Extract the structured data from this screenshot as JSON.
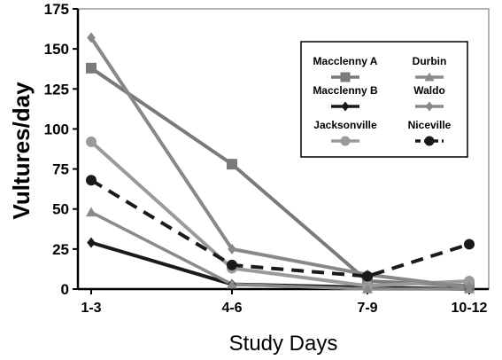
{
  "chart_data": {
    "type": "line",
    "title": "",
    "xlabel": "Study Days",
    "ylabel": "Vultures/day",
    "categories": [
      "1-3",
      "4-6",
      "7-9",
      "10-12"
    ],
    "ylim": [
      0,
      175
    ],
    "yticks": [
      "0",
      "25",
      "50",
      "75",
      "100",
      "125",
      "150",
      "175"
    ],
    "grid": false,
    "legend_position": "top-right",
    "series": [
      {
        "name": "Macclenny A",
        "values": [
          138,
          78,
          5,
          2
        ],
        "color": "#7a7a7a",
        "width": 4,
        "dash": "",
        "marker": "square"
      },
      {
        "name": "Macclenny B",
        "values": [
          29,
          3,
          1,
          0
        ],
        "color": "#1a1a1a",
        "width": 4,
        "dash": "",
        "marker": "diamond"
      },
      {
        "name": "Jacksonville",
        "values": [
          92,
          13,
          2,
          5
        ],
        "color": "#9a9a9a",
        "width": 4,
        "dash": "",
        "marker": "circle"
      },
      {
        "name": "Durbin",
        "values": [
          48,
          3,
          0,
          0
        ],
        "color": "#8a8a8a",
        "width": 3.5,
        "dash": "",
        "marker": "triangle"
      },
      {
        "name": "Waldo",
        "values": [
          157,
          25,
          9,
          1
        ],
        "color": "#888888",
        "width": 4,
        "dash": "",
        "marker": "diamond"
      },
      {
        "name": "Niceville",
        "values": [
          68,
          15,
          8,
          28
        ],
        "color": "#1a1a1a",
        "width": 4,
        "dash": "14,9",
        "marker": "circle"
      }
    ]
  }
}
